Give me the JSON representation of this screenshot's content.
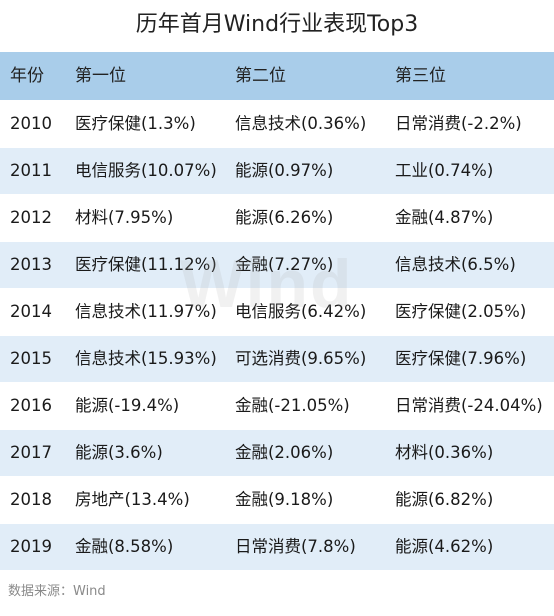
{
  "title": "历年首月Wind行业表现Top3",
  "watermark": "Wind",
  "columns": [
    "年份",
    "第一位",
    "第二位",
    "第三位"
  ],
  "rows": [
    [
      "2010",
      "医疗保健(1.3%)",
      "信息技术(0.36%)",
      "日常消费(-2.2%)"
    ],
    [
      "2011",
      "电信服务(10.07%)",
      "能源(0.97%)",
      "工业(0.74%)"
    ],
    [
      "2012",
      "材料(7.95%)",
      "能源(6.26%)",
      "金融(4.87%)"
    ],
    [
      "2013",
      "医疗保健(11.12%)",
      "金融(7.27%)",
      "信息技术(6.5%)"
    ],
    [
      "2014",
      "信息技术(11.97%)",
      "电信服务(6.42%)",
      "医疗保健(2.05%)"
    ],
    [
      "2015",
      "信息技术(15.93%)",
      "可选消费(9.65%)",
      "医疗保健(7.96%)"
    ],
    [
      "2016",
      "能源(-19.4%)",
      "金融(-21.05%)",
      "日常消费(-24.04%)"
    ],
    [
      "2017",
      "能源(3.6%)",
      "金融(2.06%)",
      "材料(0.36%)"
    ],
    [
      "2018",
      "房地产(13.4%)",
      "金融(9.18%)",
      "能源(6.82%)"
    ],
    [
      "2019",
      "金融(8.58%)",
      "日常消费(7.8%)",
      "能源(4.62%)"
    ]
  ],
  "source": "数据来源：Wind"
}
